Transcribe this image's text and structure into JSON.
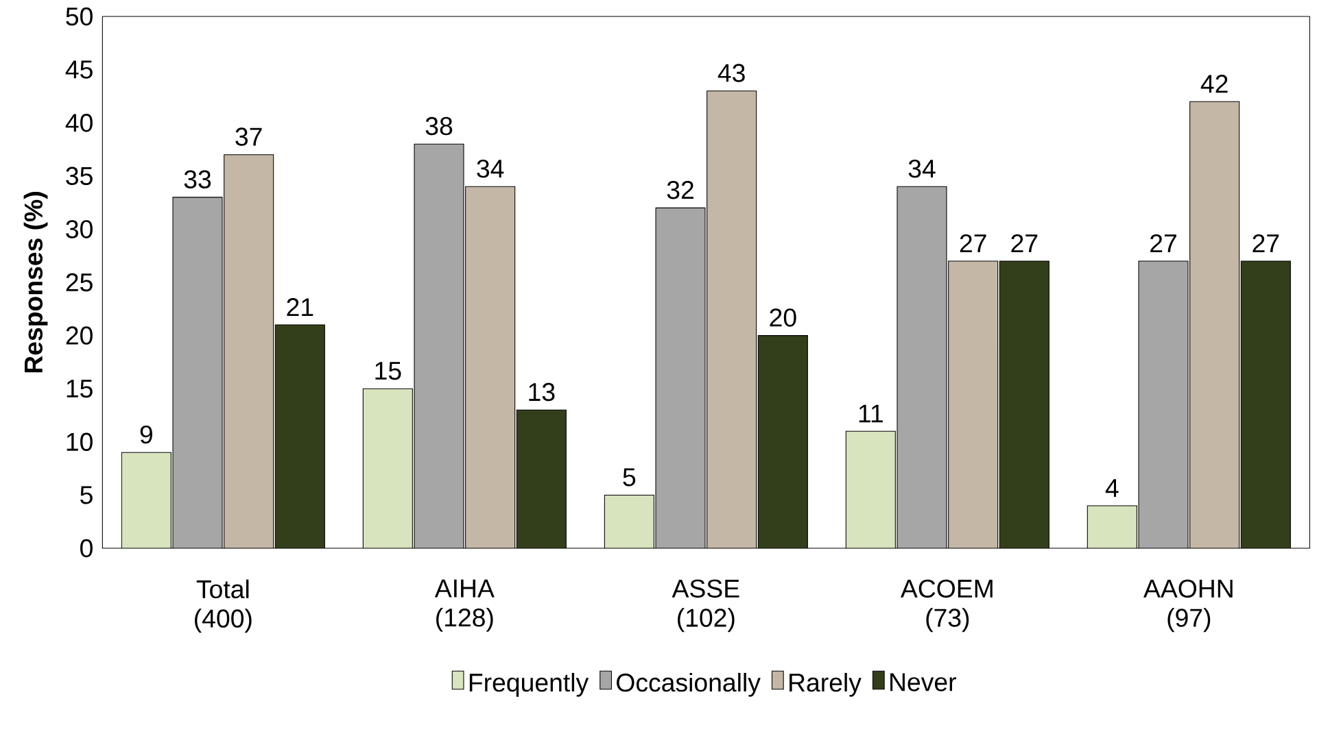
{
  "chart_data": {
    "type": "bar",
    "ylabel": "Responses (%)",
    "categories": [
      "Total (400)",
      "AIHA (128)",
      "ASSE (102)",
      "ACOEM (73)",
      "AAOHN (97)"
    ],
    "series": [
      {
        "name": "Frequently",
        "color": "#d7e4bd",
        "values": [
          9,
          15,
          5,
          11,
          4
        ]
      },
      {
        "name": "Occasionally",
        "color": "#a6a6a6",
        "values": [
          33,
          38,
          32,
          34,
          27
        ]
      },
      {
        "name": "Rarely",
        "color": "#c4b7a6",
        "values": [
          37,
          34,
          43,
          27,
          42
        ]
      },
      {
        "name": "Never",
        "color": "#333f1a",
        "values": [
          21,
          13,
          20,
          27,
          27
        ]
      }
    ],
    "ylim": [
      0,
      50
    ],
    "yticks": [
      0,
      5,
      10,
      15,
      20,
      25,
      30,
      35,
      40,
      45,
      50
    ],
    "data_labels": true,
    "legend": "bottom"
  }
}
